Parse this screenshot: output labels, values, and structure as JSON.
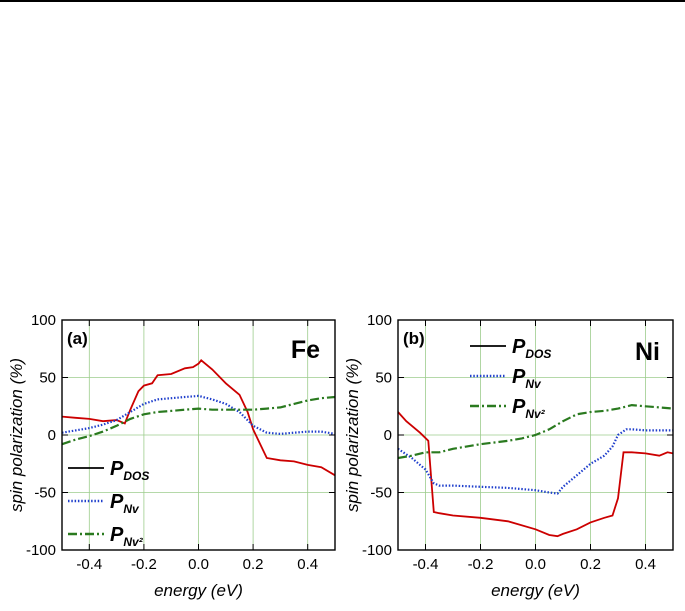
{
  "chart_data": [
    {
      "type": "line",
      "panel_label": "(a)",
      "element": "Fe",
      "xlabel": "energy  (eV)",
      "ylabel": "spin polarization  (%)",
      "xlim": [
        -0.5,
        0.5
      ],
      "ylim": [
        -100,
        100
      ],
      "xticks": [
        -0.4,
        -0.2,
        0.0,
        0.2,
        0.4
      ],
      "xtick_labels": [
        "-0.4",
        "-0.2",
        "0.0",
        "0.2",
        "0.4"
      ],
      "yticks": [
        -100,
        -50,
        0,
        50,
        100
      ],
      "ytick_labels": [
        "-100",
        "-50",
        "0",
        "50",
        "100"
      ],
      "grid": true,
      "legend_position": "bottom-left",
      "series": [
        {
          "name": "P_DOS",
          "main": "P",
          "sub": "DOS",
          "color": "#cc0000",
          "style": "solid",
          "x": [
            -0.5,
            -0.45,
            -0.4,
            -0.35,
            -0.3,
            -0.27,
            -0.25,
            -0.22,
            -0.2,
            -0.17,
            -0.15,
            -0.1,
            -0.05,
            -0.02,
            0.0,
            0.01,
            0.05,
            0.1,
            0.15,
            0.18,
            0.2,
            0.23,
            0.25,
            0.3,
            0.35,
            0.4,
            0.45,
            0.5
          ],
          "y": [
            16,
            15,
            14,
            12,
            13,
            10,
            22,
            38,
            43,
            45,
            52,
            53,
            58,
            59,
            62,
            65,
            57,
            45,
            35,
            20,
            5,
            -10,
            -20,
            -22,
            -23,
            -26,
            -28,
            -35
          ]
        },
        {
          "name": "P_Nv",
          "main": "P",
          "sub": "Nv",
          "color": "#1f3fcc",
          "style": "dotted",
          "x": [
            -0.5,
            -0.45,
            -0.4,
            -0.35,
            -0.3,
            -0.25,
            -0.2,
            -0.15,
            -0.1,
            -0.05,
            0.0,
            0.05,
            0.1,
            0.15,
            0.2,
            0.25,
            0.3,
            0.35,
            0.4,
            0.45,
            0.5
          ],
          "y": [
            2,
            4,
            6,
            9,
            13,
            20,
            27,
            31,
            32,
            33,
            34,
            31,
            27,
            20,
            8,
            2,
            1,
            2,
            3,
            3,
            1
          ]
        },
        {
          "name": "P_Nv2",
          "main": "P",
          "sub": "Nv²",
          "color": "#2a7a1f",
          "style": "dashdot",
          "x": [
            -0.5,
            -0.45,
            -0.4,
            -0.35,
            -0.3,
            -0.25,
            -0.2,
            -0.15,
            -0.1,
            -0.05,
            0.0,
            0.05,
            0.1,
            0.15,
            0.2,
            0.25,
            0.3,
            0.35,
            0.4,
            0.45,
            0.5
          ],
          "y": [
            -8,
            -4,
            -1,
            3,
            8,
            14,
            18,
            20,
            21,
            22,
            23,
            22,
            22,
            22,
            22,
            23,
            24,
            27,
            30,
            32,
            33
          ]
        }
      ]
    },
    {
      "type": "line",
      "panel_label": "(b)",
      "element": "Ni",
      "xlabel": "energy  (eV)",
      "ylabel": "spin polarization  (%)",
      "xlim": [
        -0.5,
        0.5
      ],
      "ylim": [
        -100,
        100
      ],
      "xticks": [
        -0.4,
        -0.2,
        0.0,
        0.2,
        0.4
      ],
      "xtick_labels": [
        "-0.4",
        "-0.2",
        "0.0",
        "0.2",
        "0.4"
      ],
      "yticks": [
        -100,
        -50,
        0,
        50,
        100
      ],
      "ytick_labels": [
        "-100",
        "-50",
        "0",
        "50",
        "100"
      ],
      "grid": true,
      "legend_position": "top-left",
      "series": [
        {
          "name": "P_DOS",
          "main": "P",
          "sub": "DOS",
          "color": "#cc0000",
          "style": "solid",
          "x": [
            -0.5,
            -0.47,
            -0.45,
            -0.42,
            -0.39,
            -0.37,
            -0.35,
            -0.3,
            -0.2,
            -0.1,
            0.0,
            0.05,
            0.08,
            0.1,
            0.15,
            0.2,
            0.25,
            0.28,
            0.3,
            0.32,
            0.35,
            0.4,
            0.45,
            0.48,
            0.5
          ],
          "y": [
            20,
            12,
            8,
            2,
            -5,
            -67,
            -68,
            -70,
            -72,
            -75,
            -82,
            -87,
            -88,
            -86,
            -82,
            -76,
            -72,
            -70,
            -55,
            -15,
            -15,
            -16,
            -18,
            -15,
            -16
          ]
        },
        {
          "name": "P_Nv",
          "main": "P",
          "sub": "Nv",
          "color": "#1f3fcc",
          "style": "dotted",
          "x": [
            -0.5,
            -0.45,
            -0.4,
            -0.37,
            -0.35,
            -0.3,
            -0.2,
            -0.1,
            0.0,
            0.05,
            0.08,
            0.1,
            0.15,
            0.2,
            0.25,
            0.28,
            0.3,
            0.33,
            0.35,
            0.4,
            0.45,
            0.5
          ],
          "y": [
            -12,
            -20,
            -30,
            -42,
            -44,
            -44,
            -45,
            -46,
            -48,
            -50,
            -51,
            -45,
            -35,
            -25,
            -18,
            -10,
            0,
            5,
            5,
            4,
            4,
            4
          ]
        },
        {
          "name": "P_Nv2",
          "main": "P",
          "sub": "Nv²",
          "color": "#2a7a1f",
          "style": "dashdot",
          "x": [
            -0.5,
            -0.45,
            -0.4,
            -0.35,
            -0.3,
            -0.2,
            -0.1,
            -0.05,
            0.0,
            0.05,
            0.1,
            0.15,
            0.2,
            0.25,
            0.3,
            0.35,
            0.4,
            0.45,
            0.5
          ],
          "y": [
            -20,
            -18,
            -15,
            -15,
            -12,
            -8,
            -5,
            -3,
            0,
            5,
            12,
            18,
            20,
            21,
            23,
            26,
            25,
            24,
            23
          ]
        }
      ]
    }
  ]
}
